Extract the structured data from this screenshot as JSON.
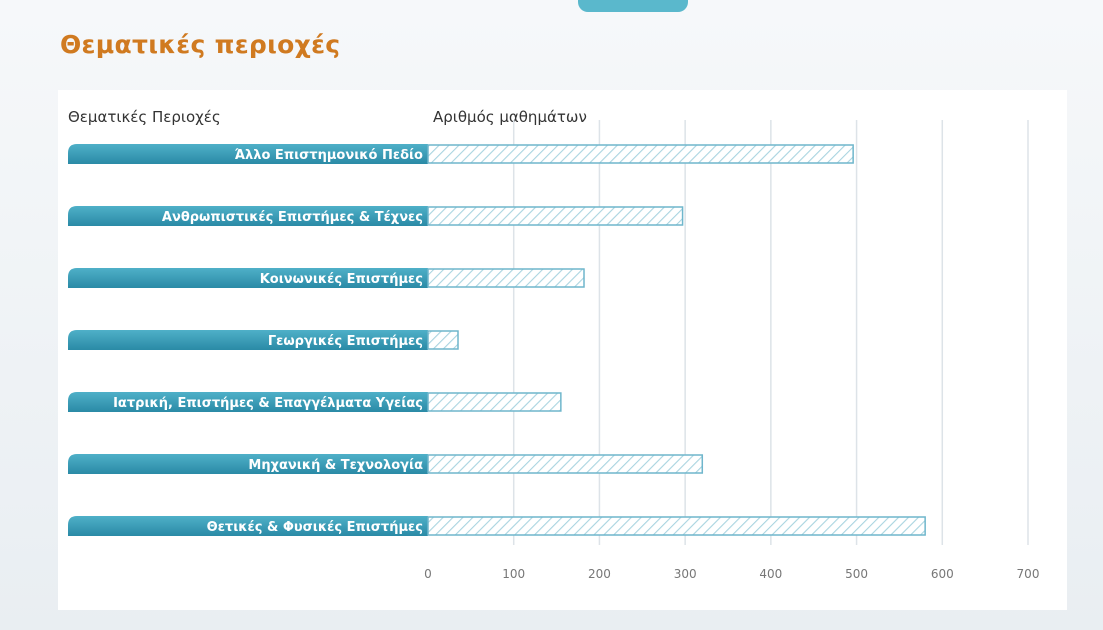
{
  "page": {
    "title": "Θεματικές περιοχές"
  },
  "chart_data": {
    "type": "bar",
    "orientation": "horizontal",
    "category_header": "Θεματικές Περιοχές",
    "value_header": "Αριθμός μαθημάτων",
    "categories": [
      "Άλλο Επιστημονικό Πεδίο",
      "Ανθρωπιστικές Επιστήμες & Τέχνες",
      "Κοινωνικές Επιστήμες",
      "Γεωργικές Επιστήμες",
      "Ιατρική, Επιστήμες & Επαγγέλματα Υγείας",
      "Μηχανική & Τεχνολογία",
      "Θετικές & Φυσικές Επιστήμες"
    ],
    "values": [
      496,
      297,
      182,
      35,
      155,
      320,
      580
    ],
    "xlim": [
      0,
      700
    ],
    "ticks": [
      0,
      100,
      200,
      300,
      400,
      500,
      600,
      700
    ],
    "grid": true,
    "colors": {
      "label_bar": "#2f8eaa",
      "label_bar_light": "#4fb0c8",
      "value_bar_outline": "#6fb6cc",
      "value_bar_hatch": "#9fd0de",
      "grid": "#dde3e8",
      "title": "#d07a20"
    }
  }
}
